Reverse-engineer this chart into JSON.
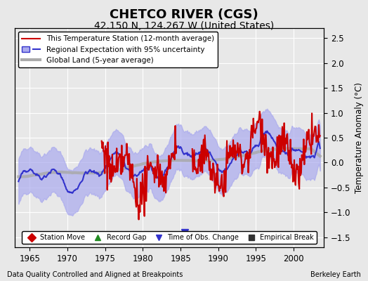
{
  "title": "CHETCO RIVER (CGS)",
  "subtitle": "42.150 N, 124.267 W (United States)",
  "ylabel": "Temperature Anomaly (°C)",
  "xlabel_note": "Data Quality Controlled and Aligned at Breakpoints",
  "source_note": "Berkeley Earth",
  "ylim": [
    -1.7,
    2.7
  ],
  "xlim": [
    1963,
    2004
  ],
  "yticks": [
    -1.5,
    -1.0,
    -0.5,
    0.0,
    0.5,
    1.0,
    1.5,
    2.0,
    2.5
  ],
  "xticks": [
    1965,
    1970,
    1975,
    1980,
    1985,
    1990,
    1995,
    2000
  ],
  "bg_color": "#e8e8e8",
  "plot_bg_color": "#e8e8e8",
  "grid_color": "white",
  "title_fontsize": 13,
  "subtitle_fontsize": 10,
  "legend_items": [
    {
      "label": "This Temperature Station (12-month average)",
      "color": "#cc0000",
      "lw": 1.5
    },
    {
      "label": "Regional Expectation with 95% uncertainty",
      "color": "#3333cc",
      "lw": 1.5
    },
    {
      "label": "Global Land (5-year average)",
      "color": "#aaaaaa",
      "lw": 3
    }
  ],
  "marker_items": [
    {
      "label": "Station Move",
      "marker": "D",
      "color": "#cc0000"
    },
    {
      "label": "Record Gap",
      "marker": "^",
      "color": "#228B22"
    },
    {
      "label": "Time of Obs. Change",
      "marker": "v",
      "color": "#3333cc"
    },
    {
      "label": "Empirical Break",
      "marker": "s",
      "color": "#333333"
    }
  ],
  "record_gap_x": 1985.5,
  "record_gap_y": -1.45,
  "time_obs_x": 1985.5,
  "time_obs_y": -1.45
}
